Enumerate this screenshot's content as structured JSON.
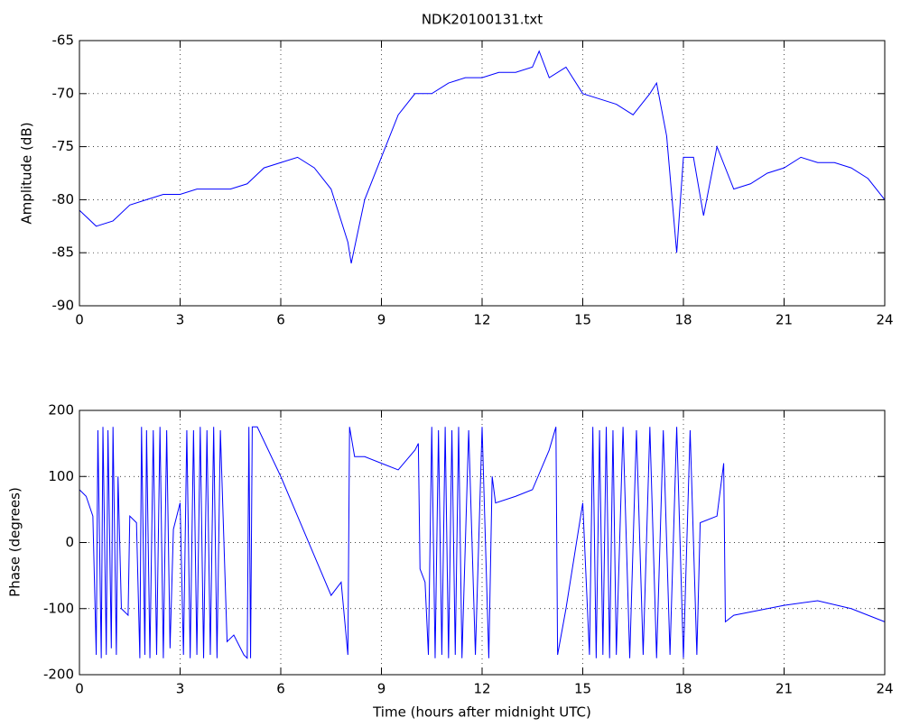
{
  "chart_data": [
    {
      "type": "line",
      "title": "NDK20100131.txt",
      "y_label": "Amplitude (dB)",
      "xlim": [
        0,
        24
      ],
      "xticks": [
        0,
        3,
        6,
        9,
        12,
        15,
        18,
        21,
        24
      ],
      "ylim": [
        -90,
        -65
      ],
      "yticks": [
        -90,
        -85,
        -80,
        -75,
        -70,
        -65
      ],
      "grid": true,
      "series": [
        {
          "color": "#0000ff",
          "x": [
            0,
            0.5,
            1,
            1.5,
            2,
            2.5,
            3,
            3.5,
            4,
            4.5,
            5,
            5.5,
            6,
            6.5,
            7,
            7.5,
            8,
            8.1,
            8.5,
            9,
            9.5,
            10,
            10.5,
            11,
            11.5,
            12,
            12.5,
            13,
            13.5,
            13.7,
            14,
            14.5,
            15,
            15.5,
            16,
            16.5,
            17,
            17.2,
            17.5,
            17.8,
            18,
            18.3,
            18.6,
            19,
            19.5,
            20,
            20.5,
            21,
            21.5,
            22,
            22.5,
            23,
            23.5,
            24
          ],
          "values": [
            -81,
            -82.5,
            -82,
            -80.5,
            -80,
            -79.5,
            -79.5,
            -79,
            -79,
            -79,
            -78.5,
            -77,
            -76.5,
            -76,
            -77,
            -79,
            -84,
            -86,
            -80,
            -76,
            -72,
            -70,
            -70,
            -69,
            -68.5,
            -68.5,
            -68,
            -68,
            -67.5,
            -66,
            -68.5,
            -67.5,
            -70,
            -70.5,
            -71,
            -72,
            -70,
            -69,
            -74,
            -85,
            -76,
            -76,
            -81.5,
            -75,
            -79,
            -78.5,
            -77.5,
            -77,
            -76,
            -76.5,
            -76.5,
            -77,
            -78,
            -80
          ]
        }
      ]
    },
    {
      "type": "line",
      "x_label": "Time (hours after midnight UTC)",
      "y_label": "Phase (degrees)",
      "xlim": [
        0,
        24
      ],
      "xticks": [
        0,
        3,
        6,
        9,
        12,
        15,
        18,
        21,
        24
      ],
      "ylim": [
        -200,
        200
      ],
      "yticks": [
        -200,
        -100,
        0,
        100,
        200
      ],
      "grid": true,
      "series": [
        {
          "color": "#0000ff",
          "x": [
            0,
            0.2,
            0.4,
            0.5,
            0.55,
            0.65,
            0.7,
            0.8,
            0.85,
            0.95,
            1.0,
            1.1,
            1.15,
            1.25,
            1.45,
            1.5,
            1.7,
            1.8,
            1.85,
            1.95,
            2.0,
            2.1,
            2.2,
            2.3,
            2.4,
            2.5,
            2.6,
            2.7,
            2.8,
            3.0,
            3.1,
            3.2,
            3.3,
            3.4,
            3.5,
            3.6,
            3.7,
            3.8,
            3.9,
            4.0,
            4.1,
            4.2,
            4.4,
            4.6,
            4.9,
            5.0,
            5.05,
            5.1,
            5.15,
            5.3,
            6.0,
            6.5,
            7.0,
            7.5,
            7.8,
            8.0,
            8.05,
            8.2,
            8.5,
            9.0,
            9.5,
            10.0,
            10.1,
            10.15,
            10.3,
            10.4,
            10.5,
            10.6,
            10.7,
            10.8,
            10.9,
            11.0,
            11.1,
            11.2,
            11.3,
            11.4,
            11.6,
            11.8,
            12.0,
            12.2,
            12.3,
            12.4,
            13.0,
            13.5,
            14.0,
            14.2,
            14.25,
            14.5,
            15.0,
            15.2,
            15.3,
            15.4,
            15.5,
            15.6,
            15.7,
            15.8,
            15.9,
            16.0,
            16.2,
            16.4,
            16.6,
            16.8,
            17.0,
            17.2,
            17.4,
            17.6,
            17.8,
            18.0,
            18.2,
            18.4,
            18.5,
            19.0,
            19.2,
            19.25,
            19.5,
            21.0,
            22.0,
            23.0,
            24.0
          ],
          "values": [
            80,
            70,
            40,
            -170,
            170,
            -175,
            175,
            -170,
            170,
            -160,
            175,
            -170,
            100,
            -100,
            -110,
            40,
            30,
            -175,
            175,
            -170,
            170,
            -175,
            170,
            -170,
            175,
            -175,
            170,
            -160,
            20,
            60,
            -170,
            170,
            -175,
            170,
            -170,
            175,
            -175,
            170,
            -170,
            175,
            -175,
            170,
            -150,
            -140,
            -170,
            -175,
            175,
            -175,
            175,
            175,
            100,
            40,
            -20,
            -80,
            -60,
            -170,
            175,
            130,
            130,
            120,
            110,
            140,
            150,
            -40,
            -60,
            -170,
            175,
            -175,
            170,
            -170,
            175,
            -175,
            170,
            -170,
            175,
            -175,
            170,
            -170,
            175,
            -175,
            100,
            60,
            70,
            80,
            140,
            175,
            -170,
            -100,
            60,
            -170,
            175,
            -175,
            170,
            -170,
            175,
            -175,
            170,
            -170,
            175,
            -175,
            170,
            -170,
            175,
            -175,
            170,
            -170,
            175,
            -175,
            170,
            -170,
            30,
            40,
            120,
            -120,
            -110,
            -95,
            -88,
            -100,
            -120
          ]
        }
      ]
    }
  ]
}
